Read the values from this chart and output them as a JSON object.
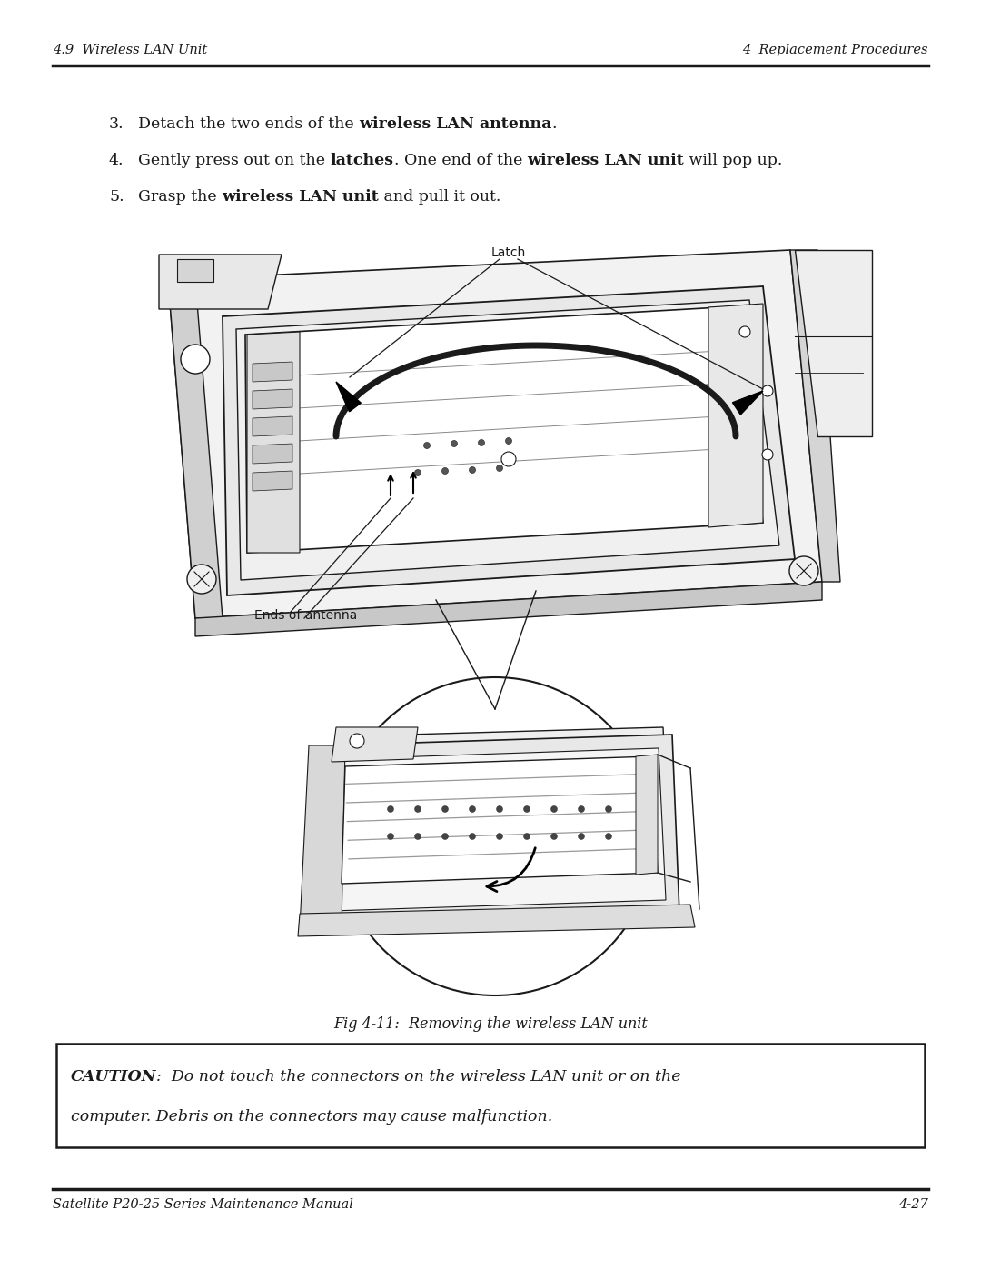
{
  "header_left": "4.9  Wireless LAN Unit",
  "header_right": "4  Replacement Procedures",
  "footer_left": "Satellite P20-25 Series Maintenance Manual",
  "footer_right": "4-27",
  "steps": [
    {
      "number": "3.",
      "normal1": "Detach the two ends of the ",
      "bold1": "wireless LAN antenna",
      "normal2": ".",
      "bold2": "",
      "normal3": ""
    },
    {
      "number": "4.",
      "normal1": "Gently press out on the ",
      "bold1": "latches",
      "normal2": ". One end of the ",
      "bold2": "wireless LAN unit",
      "normal3": " will pop up."
    },
    {
      "number": "5.",
      "normal1": "Grasp the ",
      "bold1": "wireless LAN unit",
      "normal2": " and pull it out.",
      "bold2": "",
      "normal3": ""
    }
  ],
  "fig_caption": "Fig 4-11:  Removing the wireless LAN unit",
  "caution_bold": "CAUTION",
  "caution_line1": ":  Do not touch the connectors on the wireless LAN unit or on the",
  "caution_line2": "computer. Debris on the connectors may cause malfunction.",
  "bg_color": "#ffffff",
  "text_color": "#000000",
  "line_color": "#000000"
}
